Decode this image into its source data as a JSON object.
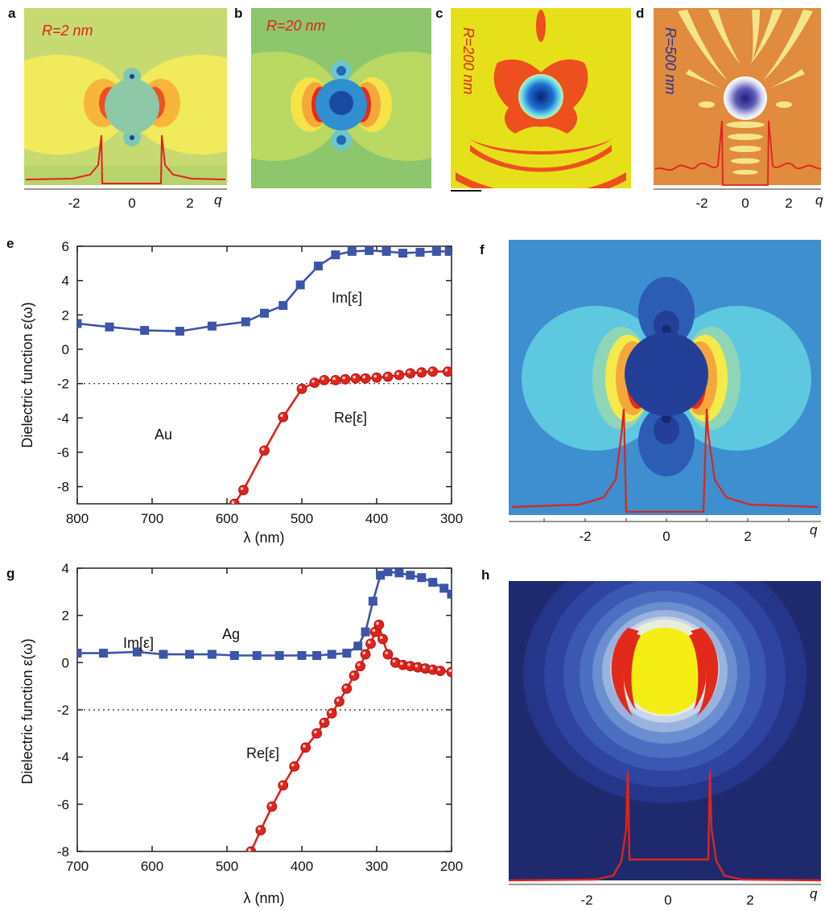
{
  "panel_labels": [
    "a",
    "b",
    "c",
    "d",
    "e",
    "f",
    "g",
    "h"
  ],
  "top_panels": {
    "a_radius": "R=2 nm",
    "b_radius": "R=20 nm",
    "c_radius": "R=200 nm",
    "d_radius": "R=500 nm",
    "q_ticks": [
      "-2",
      "0",
      "2"
    ],
    "q_label": "q"
  },
  "colors": {
    "im_series": "#3c55a8",
    "re_series": "#e0231d",
    "profile_line": "#e0231d"
  },
  "chart_data": [
    {
      "type": "line",
      "panel": "e",
      "xlabel": "λ (nm)",
      "ylabel": "Dielectric function ε(ω)",
      "xlim": [
        800,
        300
      ],
      "ylim": [
        -9,
        6
      ],
      "xticks": [
        "800",
        "700",
        "600",
        "500",
        "400",
        "300"
      ],
      "yticks": [
        "6",
        "4",
        "2",
        "0",
        "-2",
        "-4",
        "-6",
        "-8"
      ],
      "annotations": [
        "Im[ε]",
        "Re[ε]",
        "Au"
      ],
      "reference_line_y": -2,
      "series": [
        {
          "name": "Im[ε]",
          "x": [
            800,
            757,
            710,
            663,
            620,
            575,
            550,
            525,
            502,
            478,
            455,
            433,
            410,
            387,
            365,
            342,
            320,
            303
          ],
          "y": [
            1.5,
            1.3,
            1.1,
            1.05,
            1.35,
            1.6,
            2.1,
            2.55,
            3.75,
            4.85,
            5.5,
            5.7,
            5.75,
            5.7,
            5.6,
            5.65,
            5.7,
            5.7
          ]
        },
        {
          "name": "Re[ε]",
          "x": [
            590,
            578,
            550,
            525,
            500,
            483,
            470,
            455,
            442,
            428,
            415,
            400,
            385,
            370,
            355,
            340,
            325,
            305
          ],
          "y": [
            -9,
            -8.2,
            -5.9,
            -3.95,
            -2.3,
            -1.95,
            -1.8,
            -1.8,
            -1.75,
            -1.7,
            -1.7,
            -1.65,
            -1.6,
            -1.5,
            -1.4,
            -1.35,
            -1.3,
            -1.3
          ]
        }
      ]
    },
    {
      "type": "line",
      "panel": "g",
      "xlabel": "λ (nm)",
      "ylabel": "Dielectric function ε(ω)",
      "xlim": [
        700,
        200
      ],
      "ylim": [
        -8,
        4
      ],
      "xticks": [
        "700",
        "600",
        "500",
        "400",
        "300",
        "200"
      ],
      "yticks": [
        "4",
        "2",
        "0",
        "-2",
        "-4",
        "-6",
        "-8"
      ],
      "annotations": [
        "Im[ε]",
        "Ag",
        "Re[ε]"
      ],
      "reference_line_y": -2,
      "series": [
        {
          "name": "Im[ε]",
          "x": [
            700,
            665,
            620,
            585,
            550,
            520,
            490,
            460,
            430,
            400,
            380,
            360,
            340,
            325,
            315,
            305,
            295,
            285,
            270,
            255,
            240,
            225,
            210,
            200
          ],
          "y": [
            0.4,
            0.4,
            0.45,
            0.35,
            0.35,
            0.35,
            0.3,
            0.3,
            0.3,
            0.3,
            0.3,
            0.35,
            0.4,
            0.7,
            1.3,
            2.6,
            3.7,
            3.85,
            3.8,
            3.7,
            3.6,
            3.4,
            3.15,
            2.9
          ]
        },
        {
          "name": "Re[ε]",
          "x": [
            468,
            455,
            440,
            425,
            410,
            395,
            380,
            370,
            360,
            350,
            340,
            330,
            322,
            315,
            308,
            302,
            297,
            292,
            285,
            275,
            265,
            255,
            245,
            235,
            225,
            215,
            200
          ],
          "y": [
            -8,
            -7.1,
            -6.1,
            -5.2,
            -4.4,
            -3.6,
            -3.0,
            -2.55,
            -2.15,
            -1.65,
            -1.1,
            -0.55,
            -0.15,
            0.35,
            0.8,
            1.3,
            1.6,
            1.0,
            0.35,
            0.0,
            -0.1,
            -0.15,
            -0.2,
            -0.25,
            -0.3,
            -0.35,
            -0.4
          ]
        }
      ]
    }
  ]
}
